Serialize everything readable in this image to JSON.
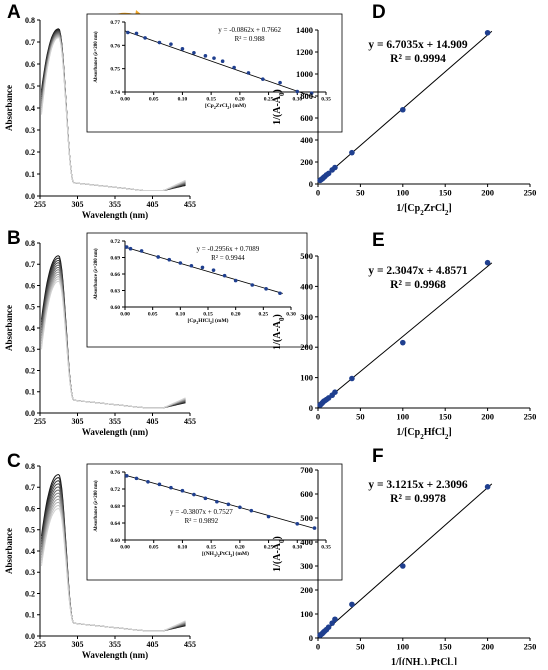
{
  "chart_data": [
    {
      "panel": "A",
      "type": "line",
      "xlabel": "Wavelength (nm)",
      "ylabel": "Absorbance",
      "xlim": [
        255,
        455
      ],
      "ylim": [
        0,
        0.8
      ],
      "xticks": [
        255,
        305,
        355,
        405,
        455
      ],
      "yticks": [
        0,
        0.1,
        0.2,
        0.3,
        0.4,
        0.5,
        0.6,
        0.7,
        0.8
      ],
      "peak_x": 280,
      "peak_y_max": 0.76,
      "peak_y_min": 0.72,
      "start_y_max": 0.48,
      "start_y_min": 0.37,
      "n_curves": 12,
      "inset": {
        "type": "scatter",
        "xlabel": "[Cp2ZrCl2] (mM)",
        "ylabel": "Absorbance (λ=280 nm)",
        "xlim": [
          0,
          0.35
        ],
        "ylim": [
          0.74,
          0.77
        ],
        "xticks": [
          0.0,
          0.05,
          0.1,
          0.15,
          0.2,
          0.25,
          0.3,
          0.35
        ],
        "yticks": [
          0.74,
          0.75,
          0.76,
          0.77
        ],
        "equation": "y = -0.0862x + 0.7662",
        "r2": "R² = 0.988",
        "slope": -0.0862,
        "intercept": 0.7662,
        "x": [
          0.005,
          0.02,
          0.035,
          0.06,
          0.08,
          0.1,
          0.12,
          0.14,
          0.155,
          0.17,
          0.19,
          0.215,
          0.24,
          0.27,
          0.3,
          0.325
        ],
        "y": [
          0.7655,
          0.7651,
          0.7632,
          0.7612,
          0.7605,
          0.7585,
          0.7568,
          0.7555,
          0.7545,
          0.7532,
          0.7505,
          0.7482,
          0.7455,
          0.744,
          0.7402,
          0.7395
        ]
      }
    },
    {
      "panel": "B",
      "type": "line",
      "xlabel": "Wavelength (nm)",
      "ylabel": "Absorbance",
      "xlim": [
        255,
        455
      ],
      "ylim": [
        0,
        0.8
      ],
      "xticks": [
        255,
        305,
        355,
        405,
        455
      ],
      "yticks": [
        0,
        0.1,
        0.2,
        0.3,
        0.4,
        0.5,
        0.6,
        0.7,
        0.8
      ],
      "peak_x": 280,
      "peak_y_max": 0.74,
      "peak_y_min": 0.62,
      "start_y_max": 0.44,
      "start_y_min": 0.3,
      "n_curves": 12,
      "inset": {
        "type": "scatter",
        "xlabel": "[Cp2HfCl2] (mM)",
        "ylabel": "Absorbance (λ=280 nm)",
        "xlim": [
          0,
          0.3
        ],
        "ylim": [
          0.6,
          0.72
        ],
        "xticks": [
          0.0,
          0.05,
          0.1,
          0.15,
          0.2,
          0.25,
          0.3
        ],
        "yticks": [
          0.6,
          0.63,
          0.66,
          0.69,
          0.72
        ],
        "equation": "y = -0.2956x + 0.7089",
        "r2": "R² = 0.9944",
        "slope": -0.2956,
        "intercept": 0.7089,
        "x": [
          0.003,
          0.01,
          0.03,
          0.06,
          0.08,
          0.1,
          0.12,
          0.14,
          0.16,
          0.18,
          0.2,
          0.23,
          0.255,
          0.28
        ],
        "y": [
          0.709,
          0.706,
          0.702,
          0.691,
          0.686,
          0.68,
          0.675,
          0.672,
          0.667,
          0.657,
          0.648,
          0.64,
          0.633,
          0.625
        ]
      }
    },
    {
      "panel": "C",
      "type": "line",
      "xlabel": "Wavelength (nm)",
      "ylabel": "Absorbance",
      "xlim": [
        255,
        455
      ],
      "ylim": [
        0,
        0.8
      ],
      "xticks": [
        255,
        305,
        355,
        405,
        455
      ],
      "yticks": [
        0,
        0.1,
        0.2,
        0.3,
        0.4,
        0.5,
        0.6,
        0.7,
        0.8
      ],
      "peak_x": 280,
      "peak_y_max": 0.76,
      "peak_y_min": 0.6,
      "start_y_max": 0.47,
      "start_y_min": 0.33,
      "n_curves": 12,
      "inset": {
        "type": "scatter",
        "xlabel": "[(NH3)2PtCl2] (mM)",
        "ylabel": "Absorbance (λ=280 nm)",
        "xlim": [
          0,
          0.35
        ],
        "ylim": [
          0.6,
          0.76
        ],
        "xticks": [
          0.0,
          0.05,
          0.1,
          0.15,
          0.2,
          0.25,
          0.3,
          0.35
        ],
        "yticks": [
          0.6,
          0.64,
          0.68,
          0.72,
          0.76
        ],
        "equation": "y = -0.3807x + 0.7527",
        "r2": "R² = 0.9892",
        "slope": -0.3807,
        "intercept": 0.7527,
        "x": [
          0.003,
          0.02,
          0.04,
          0.06,
          0.08,
          0.1,
          0.12,
          0.14,
          0.16,
          0.18,
          0.2,
          0.22,
          0.25,
          0.3,
          0.33
        ],
        "y": [
          0.751,
          0.745,
          0.737,
          0.731,
          0.723,
          0.716,
          0.707,
          0.698,
          0.69,
          0.684,
          0.677,
          0.669,
          0.655,
          0.638,
          0.628
        ]
      }
    },
    {
      "panel": "D",
      "type": "scatter",
      "xlabel": "1/[Cp2ZrCl2]",
      "ylabel": "1/(A-A0)",
      "xlim": [
        0,
        250
      ],
      "ylim": [
        0,
        1400
      ],
      "xticks": [
        0,
        50,
        100,
        150,
        200,
        250
      ],
      "yticks": [
        0,
        200,
        400,
        600,
        800,
        1000,
        1200,
        1400
      ],
      "equation": "y = 6.7035x + 14.909",
      "r2": "R² = 0.9994",
      "slope": 6.7035,
      "intercept": 14.909,
      "x": [
        2.5,
        3.3,
        4.5,
        5.5,
        6.7,
        8,
        10,
        12.5,
        16.7,
        20,
        40,
        100,
        200
      ],
      "y": [
        33,
        38,
        45,
        50,
        60,
        68,
        83,
        96,
        128,
        150,
        285,
        675,
        1375
      ]
    },
    {
      "panel": "E",
      "type": "scatter",
      "xlabel": "1/[Cp2HfCl2]",
      "ylabel": "1/(A-A0)",
      "xlim": [
        0,
        250
      ],
      "ylim": [
        0,
        500
      ],
      "xticks": [
        0,
        50,
        100,
        150,
        200,
        250
      ],
      "yticks": [
        0,
        100,
        200,
        300,
        400,
        500
      ],
      "equation": "y = 2.3047x + 4.8571",
      "r2": "R² = 0.9968",
      "slope": 2.3047,
      "intercept": 4.8571,
      "x": [
        2.5,
        3.3,
        4.5,
        5.5,
        6.7,
        8,
        10,
        12.5,
        16.7,
        20,
        40,
        100,
        200
      ],
      "y": [
        10,
        12,
        15,
        18,
        22,
        24,
        28,
        33,
        42,
        52,
        97,
        215,
        478
      ]
    },
    {
      "panel": "F",
      "type": "scatter",
      "xlabel": "1/[(NH3)2PtCl2]",
      "ylabel": "1/(A-A0)",
      "xlim": [
        0,
        250
      ],
      "ylim": [
        0,
        700
      ],
      "xticks": [
        0,
        50,
        100,
        150,
        200,
        250
      ],
      "yticks": [
        0,
        100,
        200,
        300,
        400,
        500,
        600,
        700
      ],
      "equation": "y = 3.1215x + 2.3096",
      "r2": "R² = 0.9978",
      "slope": 3.1215,
      "intercept": 2.3096,
      "x": [
        2.5,
        3.3,
        4.5,
        5.5,
        6.7,
        8,
        10,
        12.5,
        16.7,
        20,
        40,
        100,
        200
      ],
      "y": [
        12,
        14,
        17,
        20,
        25,
        29,
        35,
        45,
        62,
        78,
        140,
        300,
        630
      ]
    }
  ],
  "colors": {
    "dot": "#1f3f8f",
    "arrow": "#f2a626",
    "fit": "#000000"
  }
}
